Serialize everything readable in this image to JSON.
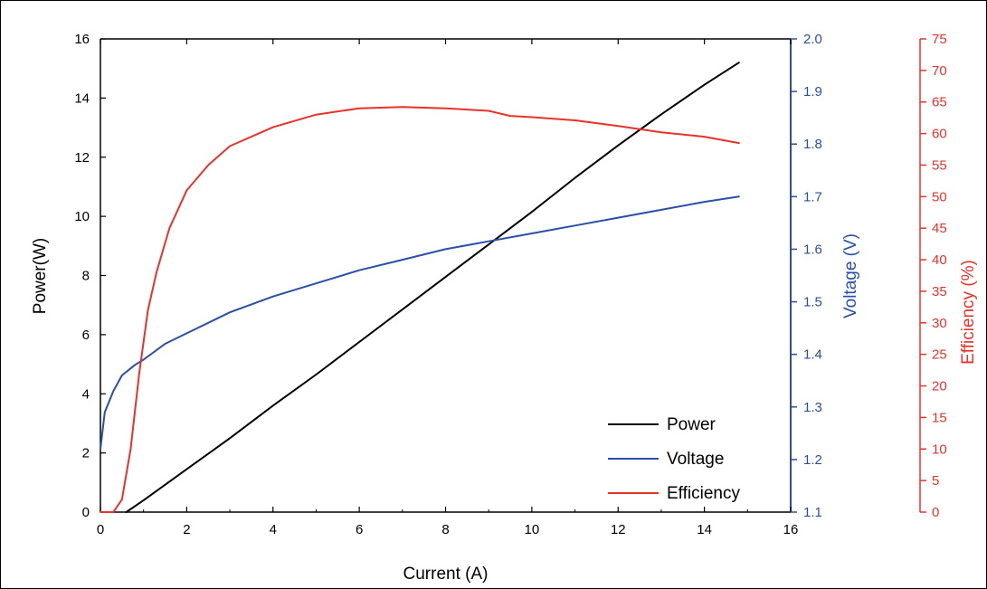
{
  "chart_data": {
    "type": "line",
    "xlabel": "Current (A)",
    "xlim": [
      0,
      16
    ],
    "x_ticks": [
      "0",
      "2",
      "4",
      "6",
      "8",
      "10",
      "12",
      "14",
      "16"
    ],
    "axes": {
      "left": {
        "label": "Power(W)",
        "lim": [
          0,
          16
        ],
        "ticks": [
          "0",
          "2",
          "4",
          "6",
          "8",
          "10",
          "12",
          "14",
          "16"
        ],
        "color": "#000000"
      },
      "right1": {
        "label": "Voltage (V)",
        "lim": [
          1.1,
          2.0
        ],
        "ticks": [
          "1.1",
          "1.2",
          "1.3",
          "1.4",
          "1.5",
          "1.6",
          "1.7",
          "1.8",
          "1.9",
          "2.0"
        ],
        "color": "#2a4fa8"
      },
      "right2": {
        "label": "Efficiency (%)",
        "lim": [
          0,
          75
        ],
        "ticks": [
          "0",
          "5",
          "10",
          "15",
          "20",
          "25",
          "30",
          "35",
          "40",
          "45",
          "50",
          "55",
          "60",
          "65",
          "70",
          "75"
        ],
        "color": "#e8322b"
      }
    },
    "series": [
      {
        "name": "Power",
        "axis": "left",
        "color": "#000000",
        "x": [
          0.6,
          1,
          2,
          3,
          4,
          5,
          6,
          7,
          8,
          9,
          10,
          11,
          12,
          13,
          14,
          14.8
        ],
        "y": [
          0,
          0.4,
          1.45,
          2.5,
          3.6,
          4.65,
          5.75,
          6.85,
          7.95,
          9.05,
          10.15,
          11.3,
          12.4,
          13.45,
          14.45,
          15.2
        ]
      },
      {
        "name": "Voltage",
        "axis": "right1",
        "color": "#2a4fa8",
        "x": [
          0,
          0.1,
          0.3,
          0.5,
          0.8,
          1,
          1.5,
          2,
          3,
          4,
          5,
          6,
          7,
          8,
          9,
          10,
          11,
          12,
          13,
          14,
          14.8
        ],
        "y": [
          1.22,
          1.29,
          1.33,
          1.36,
          1.38,
          1.39,
          1.42,
          1.44,
          1.48,
          1.51,
          1.535,
          1.56,
          1.58,
          1.6,
          1.615,
          1.63,
          1.645,
          1.66,
          1.675,
          1.69,
          1.7
        ]
      },
      {
        "name": "Efficiency",
        "axis": "right2",
        "color": "#e8322b",
        "x": [
          0,
          0.3,
          0.5,
          0.7,
          0.9,
          1.1,
          1.3,
          1.6,
          2,
          2.5,
          3,
          4,
          5,
          6,
          7,
          8,
          9,
          9.5,
          10,
          11,
          12,
          13,
          14,
          14.8
        ],
        "y": [
          0,
          0,
          2,
          10,
          22,
          32,
          38,
          45,
          51,
          55,
          58,
          61,
          63,
          64,
          64.2,
          64,
          63.6,
          62.8,
          62.6,
          62.1,
          61.2,
          60.2,
          59.5,
          58.5
        ]
      }
    ],
    "legend": {
      "position": "bottom-right",
      "entries": [
        "Power",
        "Voltage",
        "Efficiency"
      ]
    },
    "grid": false
  }
}
